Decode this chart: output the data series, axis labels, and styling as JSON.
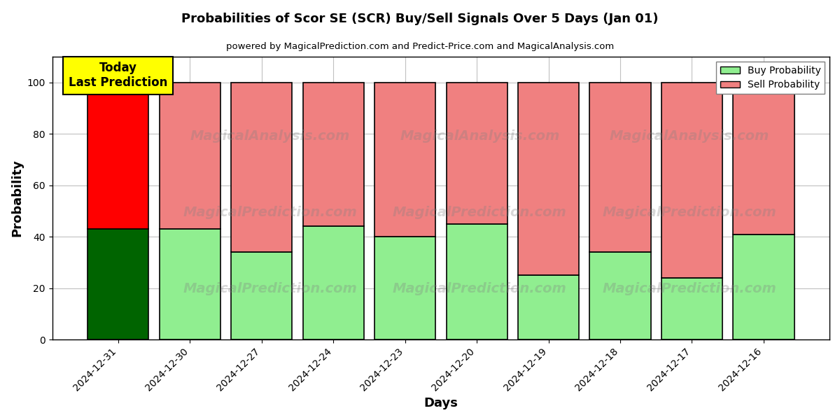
{
  "title": "Probabilities of Scor SE (SCR) Buy/Sell Signals Over 5 Days (Jan 01)",
  "subtitle": "powered by MagicalPrediction.com and Predict-Price.com and MagicalAnalysis.com",
  "xlabel": "Days",
  "ylabel": "Probability",
  "categories": [
    "2024-12-31",
    "2024-12-30",
    "2024-12-27",
    "2024-12-24",
    "2024-12-23",
    "2024-12-20",
    "2024-12-19",
    "2024-12-18",
    "2024-12-17",
    "2024-12-16"
  ],
  "buy_values": [
    43,
    43,
    34,
    44,
    40,
    45,
    25,
    34,
    24,
    41
  ],
  "sell_values": [
    57,
    57,
    66,
    56,
    60,
    55,
    75,
    66,
    76,
    59
  ],
  "today_bar_buy_color": "#006400",
  "today_bar_sell_color": "#ff0000",
  "other_bar_buy_color": "#90EE90",
  "other_bar_sell_color": "#f08080",
  "bar_edge_color": "#000000",
  "bar_edge_width": 1.2,
  "bar_width": 0.85,
  "ylim": [
    0,
    110
  ],
  "yticks": [
    0,
    20,
    40,
    60,
    80,
    100
  ],
  "dashed_line_y": 110,
  "dashed_line_color": "#808080",
  "grid_color": "#c0c0c0",
  "legend_buy_label": "Buy Probability",
  "legend_sell_label": "Sell Probability",
  "today_label_text": "Today\nLast Prediction",
  "today_label_bg": "#ffff00",
  "figsize": [
    12,
    6
  ],
  "dpi": 100,
  "watermark1": "MagicalAnalysis.com",
  "watermark2": "MagicalPrediction.com",
  "watermark3": "MagicalPrediction.com"
}
